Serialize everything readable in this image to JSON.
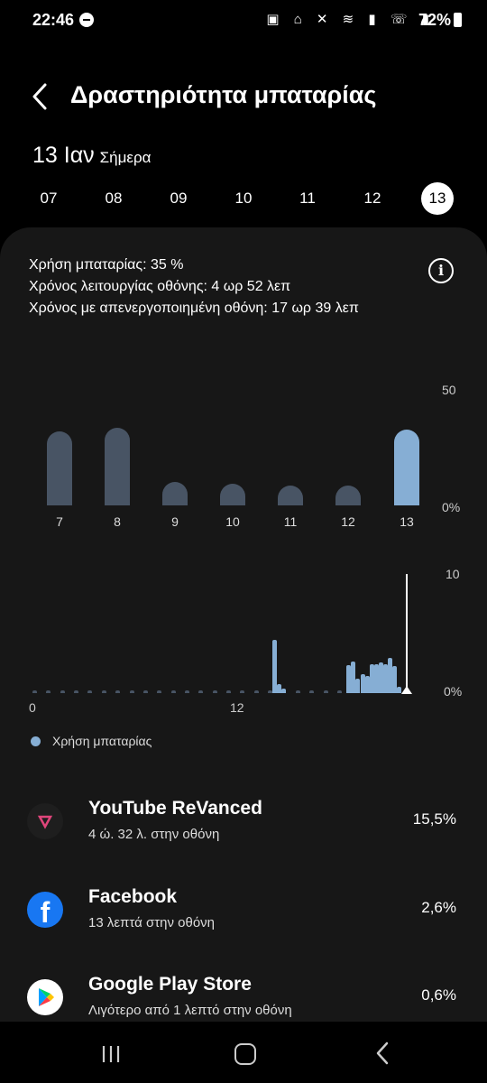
{
  "status": {
    "time": "22:46",
    "icons": "▣ ⌂ ✕ ≋ ▮ ☏ ▮",
    "battery": "72%"
  },
  "header": {
    "title": "Δραστηριότητα μπαταρίας",
    "date": "13 Ιαν",
    "date_sub": "Σήμερα"
  },
  "days": [
    "07",
    "08",
    "09",
    "10",
    "11",
    "12",
    "13"
  ],
  "selected_day": "13",
  "stats": {
    "usage": "Χρήση μπαταρίας: 35 %",
    "screen_on": "Χρόνος λειτουργίας οθόνης: 4 ωρ 52 λεπ",
    "screen_off": "Χρόνος με απενεργοποιημένη οθόνη: 17 ωρ 39 λεπ"
  },
  "chart_data": [
    {
      "type": "bar",
      "categories": [
        "7",
        "8",
        "9",
        "10",
        "11",
        "12",
        "13"
      ],
      "values": [
        34,
        36,
        11,
        10,
        9,
        9,
        35
      ],
      "ylim": [
        0,
        50
      ],
      "ytick_top": "50",
      "ytick_bottom": "0%"
    },
    {
      "type": "bar",
      "x_ticks": [
        "0",
        "12"
      ],
      "ylim": [
        0,
        10
      ],
      "ytick_top": "10",
      "ytick_bottom": "0%",
      "values": [
        0,
        0,
        0,
        0,
        0,
        0,
        0,
        0,
        0,
        0,
        0,
        0,
        0,
        0,
        0,
        0,
        0,
        0,
        0,
        0,
        0,
        0,
        0,
        0,
        0,
        0,
        0,
        0,
        0,
        0,
        0,
        0,
        0,
        0,
        0,
        0,
        0,
        0,
        0,
        0,
        0,
        0,
        0,
        0,
        0,
        0,
        0,
        0,
        0,
        0,
        0,
        0,
        4.7,
        0.8,
        0.4,
        0,
        0,
        0,
        0,
        0,
        0,
        0,
        0,
        0,
        0,
        0,
        0,
        0,
        2.5,
        2.8,
        1.3,
        1.7,
        1.5,
        2.6,
        2.6,
        2.7,
        2.6,
        3.1,
        2.4,
        0.6
      ],
      "legend": "Χρήση μπαταρίας"
    }
  ],
  "apps": [
    {
      "name": "YouTube ReVanced",
      "sub": "4 ώ. 32 λ. στην οθόνη",
      "pct": "15,5%",
      "icon": "youtube-revanced-icon"
    },
    {
      "name": "Facebook",
      "sub": "13 λεπτά στην οθόνη",
      "pct": "2,6%",
      "icon": "facebook-icon",
      "glyph": "f"
    },
    {
      "name": "Google Play Store",
      "sub": "Λιγότερο από 1 λεπτό στην οθόνη",
      "pct": "0,6%",
      "icon": "google-play-icon"
    }
  ],
  "colors": {
    "accent": "#86aed4",
    "bar": "#485464",
    "card": "#171717"
  }
}
